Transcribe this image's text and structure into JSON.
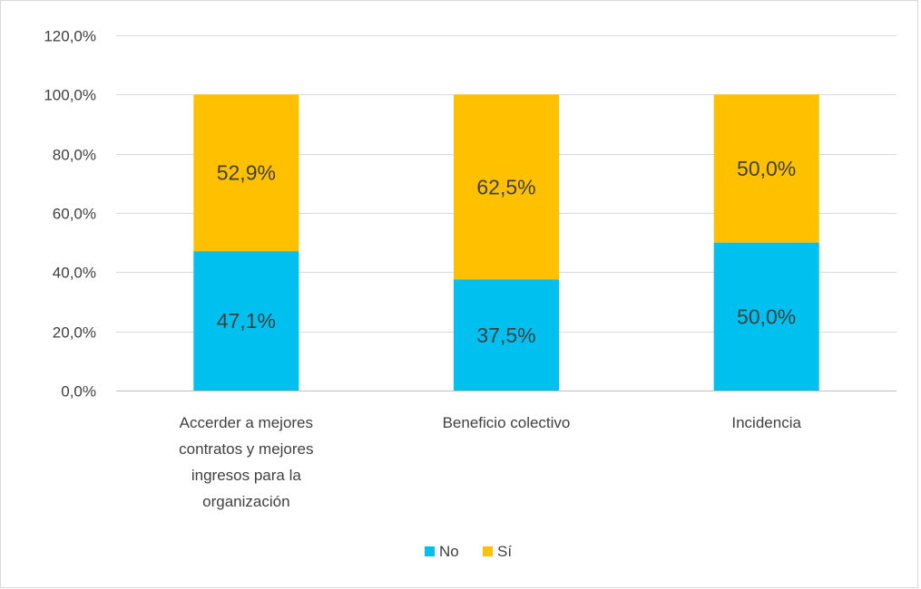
{
  "chart_data": {
    "type": "bar",
    "stacked": true,
    "categories": [
      "Accerder a mejores contratos y mejores ingresos para la organización",
      "Beneficio colectivo",
      "Incidencia"
    ],
    "category_lines": [
      [
        "Accerder a mejores",
        "contratos y mejores",
        "ingresos para la",
        "organización"
      ],
      [
        "Beneficio colectivo"
      ],
      [
        "Incidencia"
      ]
    ],
    "series": [
      {
        "name": "No",
        "values": [
          47.1,
          37.5,
          50.0
        ],
        "labels": [
          "47,1%",
          "37,5%",
          "50,0%"
        ],
        "color": "#00C0F0"
      },
      {
        "name": "Sí",
        "values": [
          52.9,
          62.5,
          50.0
        ],
        "labels": [
          "52,9%",
          "62,5%",
          "50,0%"
        ],
        "color": "#FFC000"
      }
    ],
    "yticks": [
      0,
      20,
      40,
      60,
      80,
      100,
      120
    ],
    "ytick_labels": [
      "0,0%",
      "20,0%",
      "40,0%",
      "60,0%",
      "80,0%",
      "100,0%",
      "120,0%"
    ],
    "ylim": [
      0,
      120
    ],
    "grid": true,
    "legend": {
      "position": "bottom",
      "entries": [
        "No",
        "Sí"
      ]
    }
  }
}
